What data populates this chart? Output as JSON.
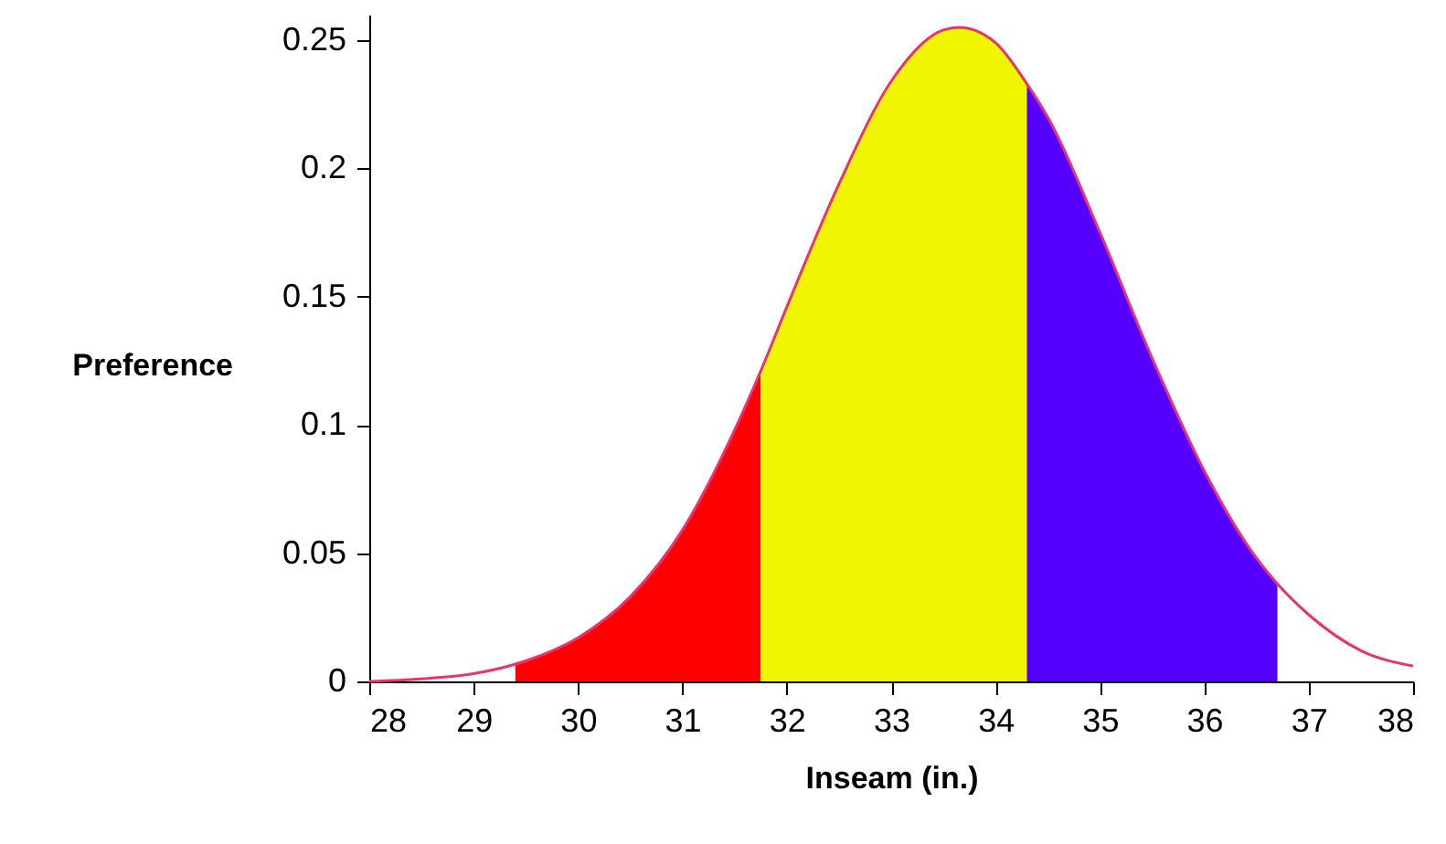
{
  "chart_data": {
    "type": "line",
    "xlabel": "Inseam (in.)",
    "ylabel": "Preference",
    "xlim": [
      28,
      38
    ],
    "xticks": [
      28,
      29,
      30,
      31,
      32,
      33,
      34,
      35,
      36,
      37,
      38
    ],
    "ylim": [
      0,
      0.26
    ],
    "yticks": [
      0,
      0.05,
      0.1,
      0.15,
      0.2,
      0.25
    ],
    "grid": false,
    "series": [
      {
        "type": "area",
        "color": "#ff0000",
        "x": [
          29.4,
          29.5,
          30.0,
          30.5,
          31.0,
          31.5,
          31.75
        ],
        "values": [
          0.007,
          0.008,
          0.017,
          0.033,
          0.059,
          0.098,
          0.121
        ]
      },
      {
        "type": "area",
        "color": "#f0f500",
        "x": [
          31.75,
          32.0,
          32.5,
          33.0,
          33.5,
          33.65,
          34.0,
          34.3
        ],
        "values": [
          0.121,
          0.146,
          0.194,
          0.234,
          0.254,
          0.255,
          0.249,
          0.233
        ]
      },
      {
        "type": "area",
        "color": "#5500ff",
        "x": [
          34.3,
          34.5,
          35.0,
          35.5,
          36.0,
          36.5,
          36.7
        ],
        "values": [
          0.233,
          0.22,
          0.175,
          0.126,
          0.082,
          0.048,
          0.038
        ]
      },
      {
        "color": "#e8336d",
        "x": [
          28.0,
          28.5,
          29.0,
          29.5,
          30.0,
          30.5,
          31.0,
          31.5,
          31.75,
          32.0,
          32.5,
          33.0,
          33.5,
          33.65,
          34.0,
          34.3,
          34.5,
          35.0,
          35.5,
          36.0,
          36.5,
          36.7,
          37.0,
          37.5,
          38.0
        ],
        "values": [
          0,
          0.001,
          0.003,
          0.008,
          0.017,
          0.033,
          0.059,
          0.098,
          0.121,
          0.146,
          0.194,
          0.234,
          0.254,
          0.255,
          0.249,
          0.233,
          0.22,
          0.175,
          0.126,
          0.082,
          0.048,
          0.038,
          0.026,
          0.012,
          0.006
        ]
      }
    ]
  }
}
